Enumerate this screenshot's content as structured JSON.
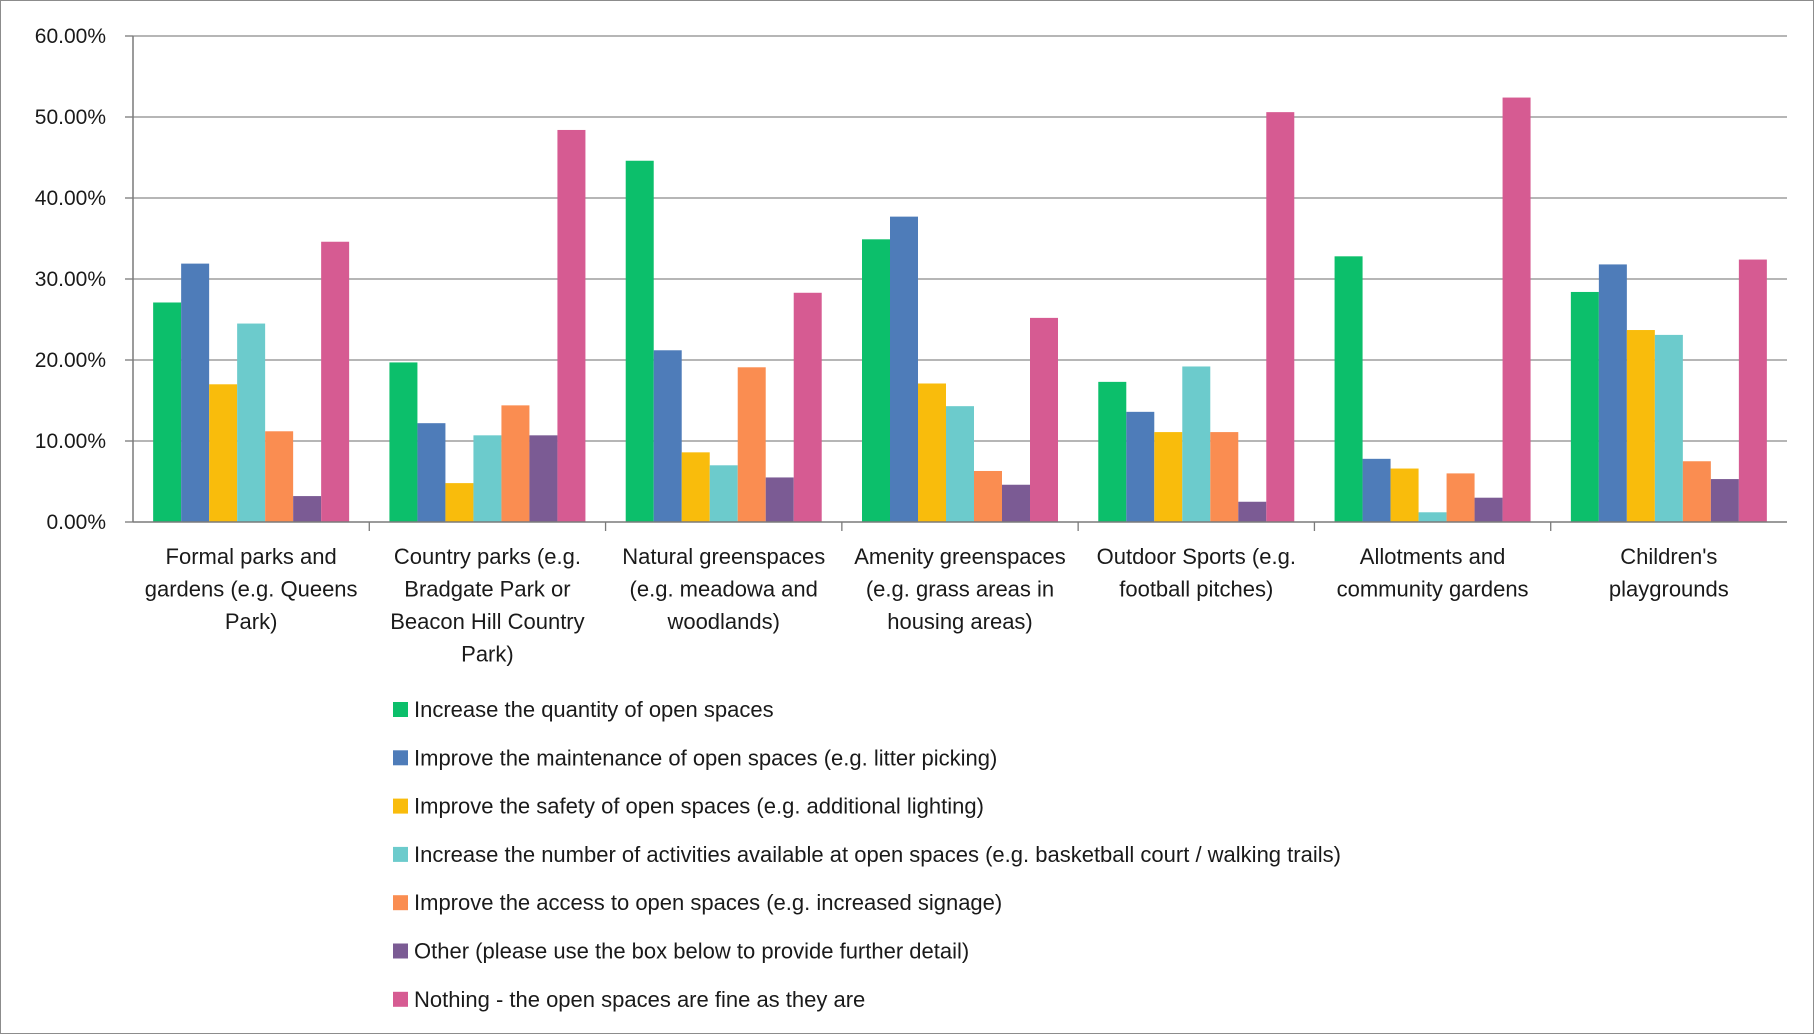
{
  "chart_data": {
    "type": "bar",
    "ylim": [
      0,
      60
    ],
    "yticks": [
      "0.00%",
      "10.00%",
      "20.00%",
      "30.00%",
      "40.00%",
      "50.00%",
      "60.00%"
    ],
    "grid": true,
    "legend_position": "bottom",
    "categories": [
      [
        "Formal parks and",
        "gardens (e.g. Queens",
        "Park)"
      ],
      [
        "Country parks (e.g.",
        "Bradgate Park or",
        "Beacon Hill Country",
        "Park)"
      ],
      [
        "Natural greenspaces",
        "(e.g. meadowa and",
        "woodlands)"
      ],
      [
        "Amenity greenspaces",
        "(e.g. grass areas in",
        "housing areas)"
      ],
      [
        "Outdoor Sports (e.g.",
        "football pitches)"
      ],
      [
        "Allotments and",
        "community gardens"
      ],
      [
        "Children's",
        "playgrounds"
      ]
    ],
    "series": [
      {
        "name": "Increase the quantity of open spaces",
        "color": "#0cbf6b",
        "values": [
          27.1,
          19.7,
          44.6,
          34.9,
          17.3,
          32.8,
          28.4
        ]
      },
      {
        "name": "Improve the maintenance of open spaces (e.g. litter picking)",
        "color": "#4e7cb9",
        "values": [
          31.9,
          12.2,
          21.2,
          37.7,
          13.6,
          7.8,
          31.8
        ]
      },
      {
        "name": "Improve the safety of open spaces (e.g. additional lighting)",
        "color": "#f9bc0c",
        "values": [
          17.0,
          4.8,
          8.6,
          17.1,
          11.1,
          6.6,
          23.7
        ]
      },
      {
        "name": "Increase the number of activities available at open spaces (e.g. basketball court / walking trails)",
        "color": "#6ccbcc",
        "values": [
          24.5,
          10.7,
          7.0,
          14.3,
          19.2,
          1.2,
          23.1
        ]
      },
      {
        "name": "Improve the access to open spaces (e.g. increased signage)",
        "color": "#fa8d51",
        "values": [
          11.2,
          14.4,
          19.1,
          6.3,
          11.1,
          6.0,
          7.5
        ]
      },
      {
        "name": "Other (please use the box below to provide further detail)",
        "color": "#7b5b94",
        "values": [
          3.2,
          10.7,
          5.5,
          4.6,
          2.5,
          3.0,
          5.3
        ]
      },
      {
        "name": "Nothing - the open spaces are fine as they are",
        "color": "#d65b92",
        "values": [
          34.6,
          48.4,
          28.3,
          25.2,
          50.6,
          52.4,
          32.4
        ]
      }
    ]
  }
}
